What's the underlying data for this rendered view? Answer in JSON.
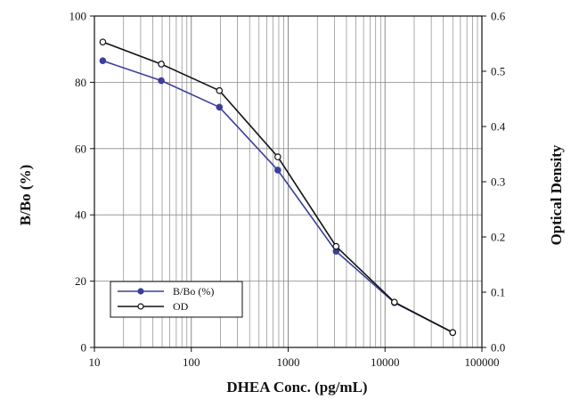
{
  "chart_data": {
    "type": "line",
    "xlabel": "DHEA Conc. (pg/mL)",
    "ylabel": "B/Bo (%)",
    "y2label": "Optical Density",
    "x_scale": "log",
    "xlim": [
      10,
      100000
    ],
    "ylim": [
      0,
      100
    ],
    "y2lim": [
      0,
      0.6
    ],
    "x_ticks": [
      "10",
      "100",
      "1000",
      "10000",
      "100000"
    ],
    "y_ticks": [
      "0",
      "20",
      "40",
      "60",
      "80",
      "100"
    ],
    "y2_ticks": [
      "0.0",
      "0.1",
      "0.2",
      "0.3",
      "0.4",
      "0.5",
      "0.6"
    ],
    "grid": true,
    "legend_position": "bottom-left",
    "x": [
      12.2,
      49,
      195,
      781,
      3125,
      12500,
      50000
    ],
    "series": [
      {
        "name": "B/Bo (%)",
        "axis": "left",
        "color": "#3b3f9a",
        "marker": "filled-circle",
        "values": [
          86.5,
          80.5,
          72.5,
          53.5,
          29,
          13.5,
          4.5
        ]
      },
      {
        "name": "OD",
        "axis": "right",
        "color": "#111111",
        "marker": "open-circle",
        "values": [
          0.553,
          0.513,
          0.465,
          0.345,
          0.183,
          0.082,
          0.027
        ]
      }
    ]
  }
}
